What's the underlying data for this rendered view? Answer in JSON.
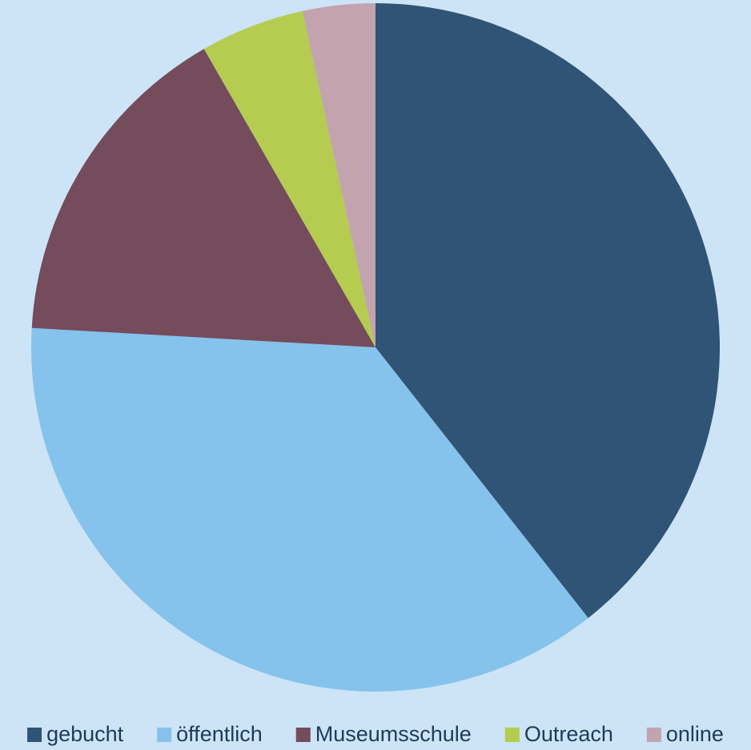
{
  "chart_data": {
    "type": "pie",
    "categories": [
      "gebucht",
      "öffentlich",
      "Museumsschule",
      "Outreach",
      "online"
    ],
    "values": [
      39.4,
      36.5,
      15.8,
      4.9,
      3.4
    ],
    "colors": [
      "#2f5475",
      "#85c2ec",
      "#744c5c",
      "#b5cc50",
      "#c2a3ae"
    ],
    "legend": "bottom"
  }
}
